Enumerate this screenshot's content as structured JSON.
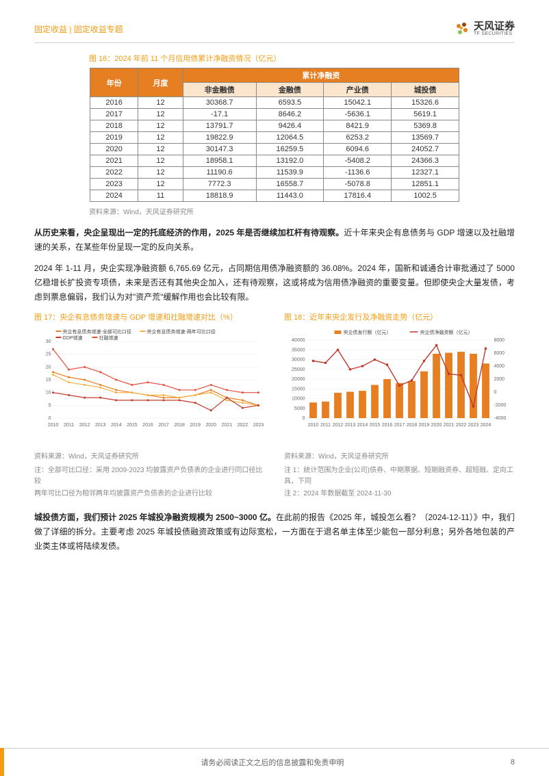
{
  "header": {
    "left": "固定收益 | 固定收益专题",
    "logo_cn": "天风证券",
    "logo_en": "TF SECURITIES"
  },
  "table": {
    "title": "图 16：2024 年前 11 个月信用债累计净融资情况（亿元）",
    "head1": {
      "year": "年份",
      "month": "月度",
      "span": "累计净融资"
    },
    "head2": [
      "非金融债",
      "金融债",
      "产业债",
      "城投债"
    ],
    "rows": [
      [
        "2016",
        "12",
        "30368.7",
        "6593.5",
        "15042.1",
        "15326.6"
      ],
      [
        "2017",
        "12",
        "-17.1",
        "8646.2",
        "-5636.1",
        "5619.1"
      ],
      [
        "2018",
        "12",
        "13791.7",
        "9426.4",
        "8421.9",
        "5369.8"
      ],
      [
        "2019",
        "12",
        "19822.9",
        "12064.5",
        "6253.2",
        "13569.7"
      ],
      [
        "2020",
        "12",
        "30147.3",
        "16259.5",
        "6094.6",
        "24052.7"
      ],
      [
        "2021",
        "12",
        "18958.1",
        "13192.0",
        "-5408.2",
        "24366.3"
      ],
      [
        "2022",
        "12",
        "11190.6",
        "11539.9",
        "-1136.6",
        "12327.1"
      ],
      [
        "2023",
        "12",
        "7772.3",
        "16558.7",
        "-5078.8",
        "12851.1"
      ],
      [
        "2024",
        "11",
        "18818.9",
        "11443.0",
        "17816.4",
        "1002.5"
      ]
    ],
    "source": "资料来源：Wind，天风证券研究所"
  },
  "para1": {
    "bold": "从历史来看，央企呈现出一定的托底经济的作用，2025 年是否继续加杠杆有待观察。",
    "rest": "近十年来央企有息债务与 GDP 增速以及社融增速的关系，在某些年份呈现一定的反向关系。"
  },
  "para2": "2024 年 1-11 月，央企实现净融资额 6,765.69 亿元，占同期信用债净融资额的 36.08%。2024 年，国新和诚通合计审批通过了 5000 亿稳增长扩投资专项债，未来是否还有其他央企加入，还有待观察，这或将成为信用债净融资的重要变量。但即使央企大量发债，考虑到票息偏弱，我们认为对\"资产荒\"缓解作用也会比较有限。",
  "chart17": {
    "title": "图 17：央企有息债务增速与 GDP 增速和社融增速对比（%）",
    "legend": [
      "央企有息债务增速-全部可比口径",
      "央企有息债务增速-两年可比口径",
      "GDP增速",
      "社融增速"
    ],
    "legend_colors": [
      "#e67e22",
      "#f5b041",
      "#c0392b",
      "#e74c3c"
    ],
    "years": [
      "2010",
      "2011",
      "2012",
      "2013",
      "2014",
      "2015",
      "2016",
      "2017",
      "2018",
      "2019",
      "2020",
      "2021",
      "2022",
      "2023"
    ],
    "ylim": [
      0,
      30
    ],
    "ytick_step": 5,
    "series": [
      [
        18,
        16,
        15,
        13,
        11,
        10,
        9,
        8,
        8,
        9,
        11,
        8,
        7,
        5
      ],
      [
        17,
        14,
        13,
        12,
        10,
        10,
        9,
        9,
        8,
        9,
        10,
        7,
        6,
        5
      ],
      [
        10,
        9,
        8,
        8,
        7,
        7,
        7,
        7,
        7,
        6,
        3,
        8,
        4,
        5
      ],
      [
        27,
        19,
        20,
        18,
        15,
        13,
        14,
        13,
        11,
        11,
        13,
        11,
        10,
        10
      ]
    ],
    "grid_color": "#e8e8e8",
    "bg": "#ffffff",
    "source": "资料来源：Wind，天风证券研究所",
    "note1": "注：全部可比口径：采用 2009-2023 均披露资产负债表的企业进行同口径比较",
    "note2": "两年可比口径为相邻两年均披露资产负债表的企业进行比较"
  },
  "chart18": {
    "title": "图 18：近年来央企发行及净融资走势（亿元）",
    "legend": [
      "央企债发行额（亿元）",
      "央企债净融资额（亿元）"
    ],
    "legend_colors": [
      "#e67e22",
      "#c0392b"
    ],
    "years": [
      "2010",
      "2011",
      "2012",
      "2013",
      "2014",
      "2015",
      "2016",
      "2017",
      "2018",
      "2019",
      "2020",
      "2021",
      "2022",
      "2023",
      "2024"
    ],
    "ylim_left": [
      0,
      40000
    ],
    "ytick_left": 5000,
    "ylim_right": [
      -4000,
      8000
    ],
    "ytick_right": 2000,
    "bars": [
      8000,
      8500,
      13000,
      13500,
      14000,
      17000,
      20000,
      18000,
      19000,
      24000,
      33000,
      33500,
      34000,
      33000,
      28000
    ],
    "line": [
      4800,
      4500,
      6500,
      3500,
      4000,
      5000,
      4200,
      1000,
      1800,
      4800,
      7200,
      2800,
      2600,
      -2200,
      6700
    ],
    "bar_color": "#e67e22",
    "line_color": "#c0392b",
    "grid_color": "#e8e8e8",
    "bg": "#ffffff",
    "source": "资料来源：Wind，天风证券研究所",
    "note1": "注 1：统计范围为企业(公司)债券、中期票据、短期融资券、超短融、定向工具，下同",
    "note2": "注 2：2024 年数据截至 2024-11-30"
  },
  "para3": {
    "bold": "城投债方面，我们预计 2025 年城投净融资规模为 2500~3000 亿。",
    "rest": "在此前的报告《2025 年，城投怎么看？（2024-12-11）》中，我们做了详细的拆分。主要考虑 2025 年城投债融资政策或有边际宽松，一方面在于退名单主体至少能包一部分利息；另外各地包装的产业类主体或将陆续发债。"
  },
  "footer": {
    "text": "请务必阅读正文之后的信息披露和免责申明",
    "page": "8"
  }
}
